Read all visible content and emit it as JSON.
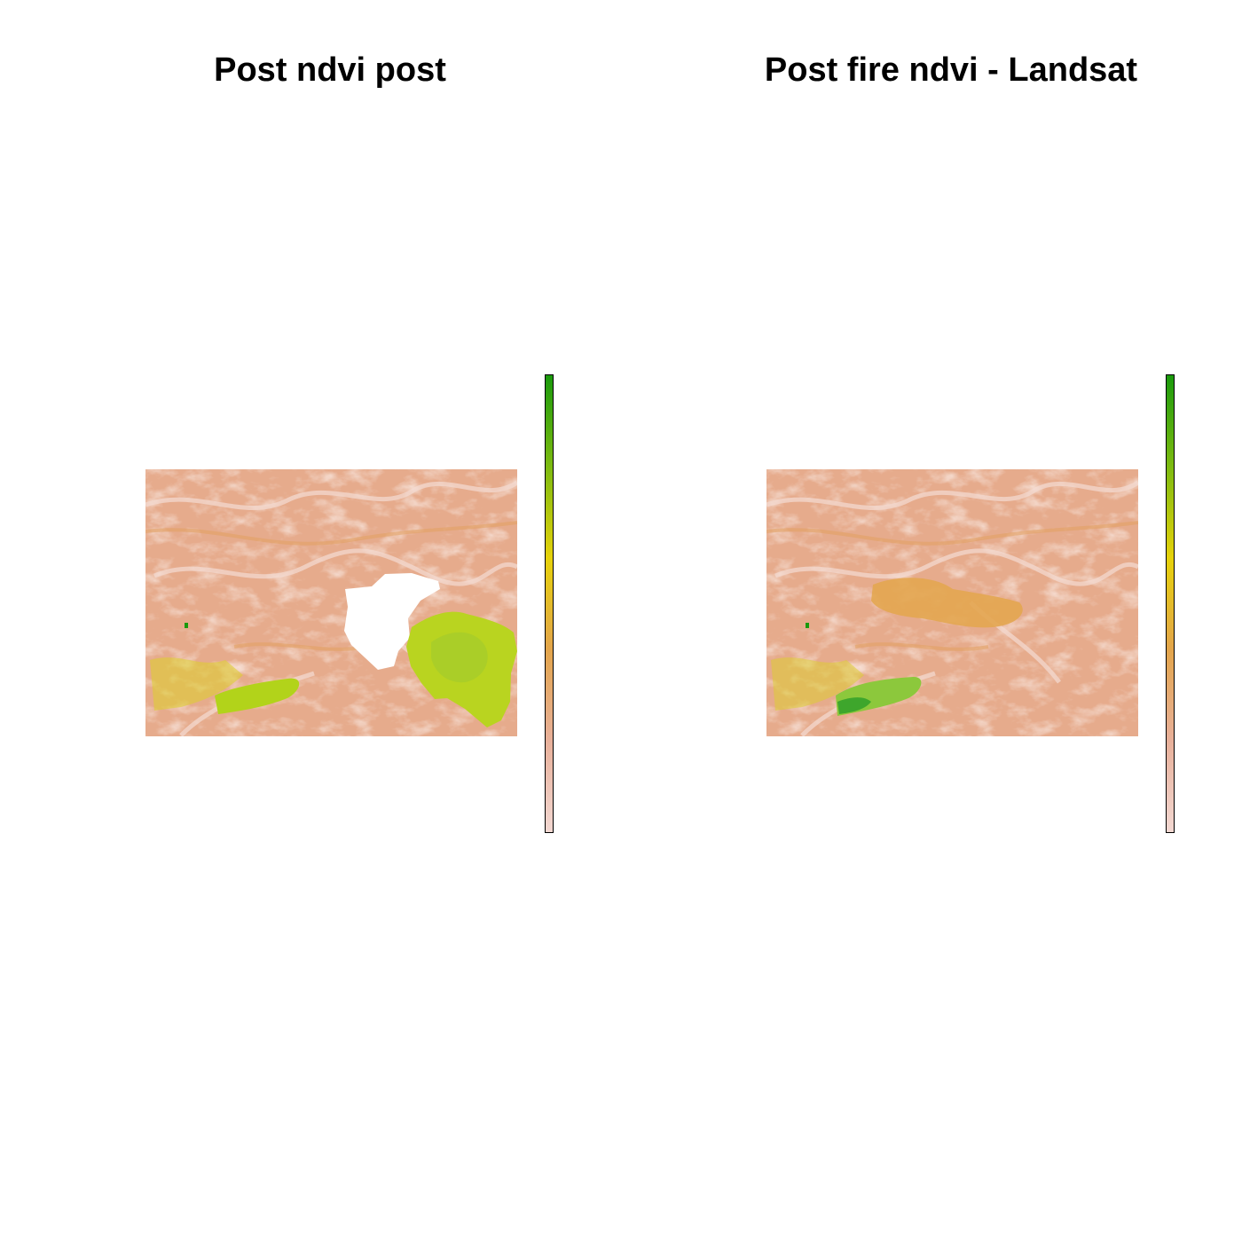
{
  "panels": [
    {
      "title": "Post ndvi post",
      "legend_colors": [
        "#1a9a0c",
        "#7dbb10",
        "#e6d20a",
        "#e3a54b",
        "#e8b09a",
        "#f3d8d2"
      ]
    },
    {
      "title": "Post fire ndvi - Landsat",
      "legend_colors": [
        "#1a9a0c",
        "#7dbb10",
        "#e6d20a",
        "#e3a54b",
        "#e8b09a",
        "#f3d8d2"
      ]
    }
  ],
  "colors": {
    "background": "#ffffff",
    "raster_base": "#e6ab8c",
    "raster_light": "#f1cfc3",
    "raster_orange": "#e5a760",
    "vegetation_green": "#b4d41c",
    "vegetation_dark": "#38a41c",
    "nodata": "#ffffff"
  }
}
